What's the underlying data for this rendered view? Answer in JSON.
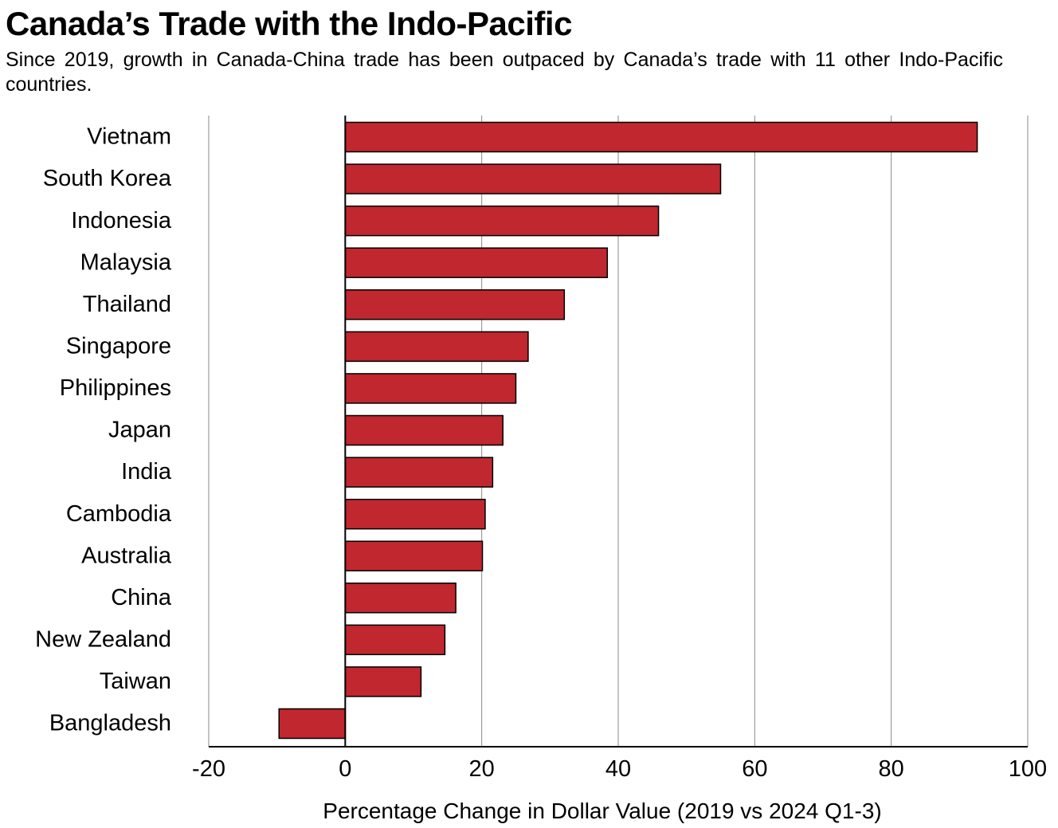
{
  "chart_data": {
    "type": "bar",
    "orientation": "horizontal",
    "title": "Canada’s Trade with the Indo-Pacific",
    "subtitle": "Since 2019, growth in Canada-China trade has been outpaced by Canada’s trade with 11 other Indo-Pacific countries.",
    "categories": [
      "Vietnam",
      "South Korea",
      "Indonesia",
      "Malaysia",
      "Thailand",
      "Singapore",
      "Philippines",
      "Japan",
      "India",
      "Cambodia",
      "Australia",
      "China",
      "New Zealand",
      "Taiwan",
      "Bangladesh"
    ],
    "values": [
      92.6,
      55.0,
      45.9,
      38.4,
      32.1,
      26.8,
      25.0,
      23.1,
      21.6,
      20.5,
      20.1,
      16.2,
      14.6,
      11.1,
      -9.7
    ],
    "xlabel": "Percentage Change in Dollar Value (2019 vs 2024 Q1-3)",
    "ylabel": "",
    "xlim": [
      -20,
      100
    ],
    "xticks": [
      "-20",
      "0",
      "20",
      "40",
      "60",
      "80",
      "100"
    ],
    "grid": true,
    "bar_color": "#c0272f"
  }
}
